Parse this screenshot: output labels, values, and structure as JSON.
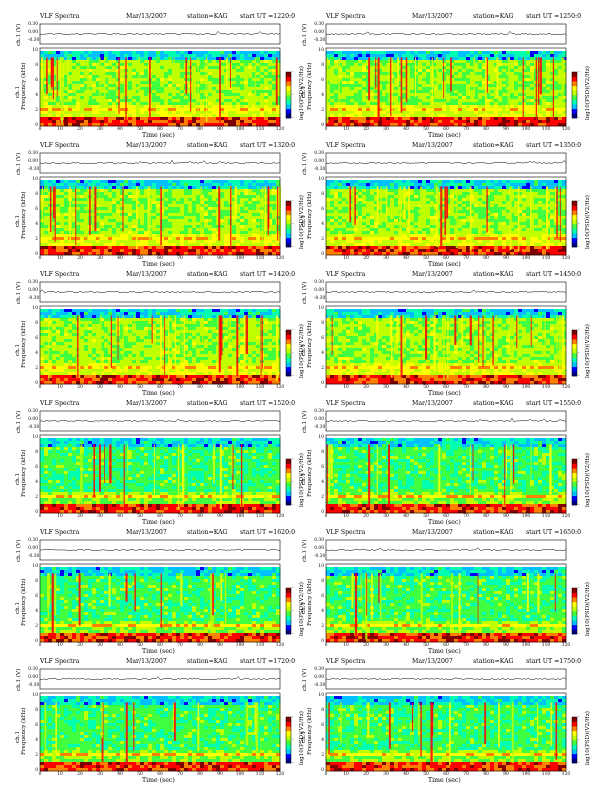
{
  "figure": {
    "title_left": "VLF Spectra",
    "date": "Mar/13/2007",
    "station": "station=KAG",
    "start_prefix": "start  UT =",
    "ch1_axis_label": "ch.1 (V)",
    "ch1_ticks": [
      "0.30",
      "0.00",
      "-0.30"
    ],
    "freq_axis_label_top": "ch.1",
    "freq_axis_label": "Frequency  (kHz)",
    "freq_ticks": [
      "0",
      "2",
      "4",
      "6",
      "8",
      "10"
    ],
    "time_axis_label": "Time  (sec)",
    "time_ticks": [
      "0",
      "10",
      "20",
      "30",
      "40",
      "50",
      "60",
      "70",
      "80",
      "90",
      "100",
      "110",
      "120"
    ],
    "colorbar_label": "log10(PSD)(V2/Hz)",
    "colorbar_ticks": [
      "-",
      "-",
      "-"
    ],
    "colormap": [
      "#000080",
      "#0000ff",
      "#00c0ff",
      "#00ffb0",
      "#40ff40",
      "#c0ff00",
      "#ffff00",
      "#ff8000",
      "#ff0000",
      "#800000"
    ]
  },
  "chart_data": [
    {
      "type": "heatmap",
      "title": "VLF Spectra  Mar/13/2007  station=KAG  start UT =1220:0",
      "start_ut": "1220:0",
      "xlabel": "Time (sec)",
      "ylabel": "Frequency (kHz)",
      "xlim": [
        0,
        120
      ],
      "ylim": [
        0,
        10
      ]
    },
    {
      "type": "heatmap",
      "title": "VLF Spectra  Mar/13/2007  station=KAG  start UT =1250:0",
      "start_ut": "1250:0",
      "xlabel": "Time (sec)",
      "ylabel": "Frequency (kHz)",
      "xlim": [
        0,
        120
      ],
      "ylim": [
        0,
        10
      ]
    },
    {
      "type": "heatmap",
      "title": "VLF Spectra  Mar/13/2007  station=KAG  start UT =1320:0",
      "start_ut": "1320:0",
      "xlabel": "Time (sec)",
      "ylabel": "Frequency (kHz)",
      "xlim": [
        0,
        120
      ],
      "ylim": [
        0,
        10
      ]
    },
    {
      "type": "heatmap",
      "title": "VLF Spectra  Mar/13/2007  station=KAG  start UT =1350:0",
      "start_ut": "1350:0",
      "xlabel": "Time (sec)",
      "ylabel": "Frequency (kHz)",
      "xlim": [
        0,
        120
      ],
      "ylim": [
        0,
        10
      ]
    },
    {
      "type": "heatmap",
      "title": "VLF Spectra  Mar/13/2007  station=KAG  start UT =1420:0",
      "start_ut": "1420:0",
      "xlabel": "Time (sec)",
      "ylabel": "Frequency (kHz)",
      "xlim": [
        0,
        120
      ],
      "ylim": [
        0,
        10
      ]
    },
    {
      "type": "heatmap",
      "title": "VLF Spectra  Mar/13/2007  station=KAG  start UT =1450:0",
      "start_ut": "1450:0",
      "xlabel": "Time (sec)",
      "ylabel": "Frequency (kHz)",
      "xlim": [
        0,
        120
      ],
      "ylim": [
        0,
        10
      ]
    },
    {
      "type": "heatmap",
      "title": "VLF Spectra  Mar/13/2007  station=KAG  start UT =1520:0",
      "start_ut": "1520:0",
      "xlabel": "Time (sec)",
      "ylabel": "Frequency (kHz)",
      "xlim": [
        0,
        120
      ],
      "ylim": [
        0,
        10
      ]
    },
    {
      "type": "heatmap",
      "title": "VLF Spectra  Mar/13/2007  station=KAG  start UT =1550:0",
      "start_ut": "1550:0",
      "xlabel": "Time (sec)",
      "ylabel": "Frequency (kHz)",
      "xlim": [
        0,
        120
      ],
      "ylim": [
        0,
        10
      ]
    },
    {
      "type": "heatmap",
      "title": "VLF Spectra  Mar/13/2007  station=KAG  start UT =1620:0",
      "start_ut": "1620:0",
      "xlabel": "Time (sec)",
      "ylabel": "Frequency (kHz)",
      "xlim": [
        0,
        120
      ],
      "ylim": [
        0,
        10
      ]
    },
    {
      "type": "heatmap",
      "title": "VLF Spectra  Mar/13/2007  station=KAG  start UT =1650:0",
      "start_ut": "1650:0",
      "xlabel": "Time (sec)",
      "ylabel": "Frequency (kHz)",
      "xlim": [
        0,
        120
      ],
      "ylim": [
        0,
        10
      ]
    },
    {
      "type": "heatmap",
      "title": "VLF Spectra  Mar/13/2007  station=KAG  start UT =1720:0",
      "start_ut": "1720:0",
      "xlabel": "Time (sec)",
      "ylabel": "Frequency (kHz)",
      "xlim": [
        0,
        120
      ],
      "ylim": [
        0,
        10
      ]
    },
    {
      "type": "heatmap",
      "title": "VLF Spectra  Mar/13/2007  station=KAG  start UT =1750:0",
      "start_ut": "1750:0",
      "xlabel": "Time (sec)",
      "ylabel": "Frequency (kHz)",
      "xlim": [
        0,
        120
      ],
      "ylim": [
        0,
        10
      ]
    }
  ]
}
